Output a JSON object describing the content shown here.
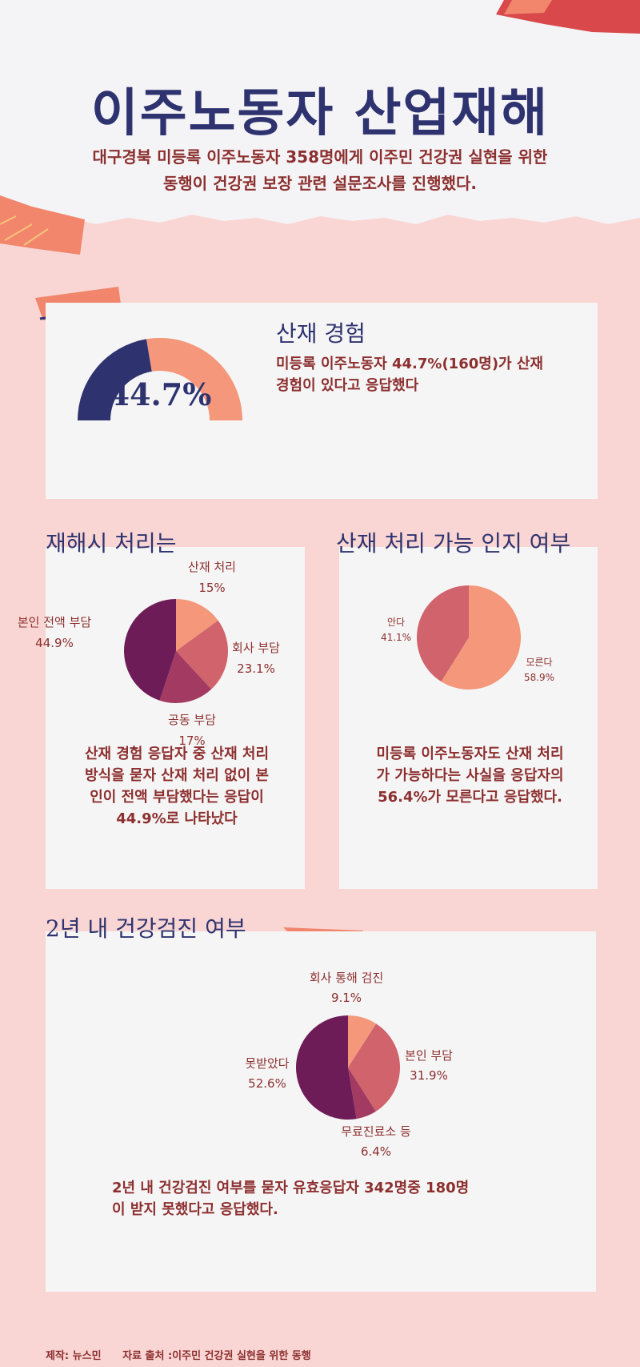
{
  "header": {
    "title": "이주노동자 산업재해",
    "subtitle_line1": "대구경북 미등록 이주노동자 358명에게 이주민 건강권 실현을 위한",
    "subtitle_line2": "동행이 건강권 보장 관련 설문조사를 진행했다."
  },
  "section1": {
    "title": "산재 경험",
    "text_line1": "미등록 이주노동자 44.7%(160명)가 산재",
    "text_line2": "경험이 있다고 응답했다",
    "gauge_label": "44.7%"
  },
  "section2": {
    "title": "재해시 처리는",
    "text_lines": [
      "산재 경험 응답자 중 산재 처리",
      "방식을 묻자 산재 처리 없이 본",
      "인이 전액 부담했다는 응답이",
      "44.9%로 나타났다"
    ]
  },
  "section3": {
    "title": "산재 처리 가능 인지 여부",
    "text_lines": [
      "미등록 이주노동자도 산재 처리",
      "가 가능하다는 사실을 응답자의",
      "56.4%가 모른다고 응답했다."
    ]
  },
  "section4": {
    "title": "2년 내 건강검진 여부",
    "text_line1": "2년 내 건강검진 여부를 묻자 유효응답자 342명중 180명",
    "text_line2": "이 받지 못했다고 응답했다."
  },
  "footer": {
    "credit": "제작: 뉴스민",
    "source": "자료 출처 :이주민 건강권 실현을 위한 동행"
  },
  "colors": {
    "navy": "#2e3370",
    "salmon": "#f4977a",
    "rose": "#d0636b",
    "berry": "#a23a62",
    "plum": "#6e1c57",
    "text_red": "#8c2f2f"
  },
  "chart_data": [
    {
      "type": "pie",
      "variant": "half-donut-gauge",
      "values": [
        44.7,
        55.3
      ],
      "value_label": "44.7%"
    },
    {
      "type": "pie",
      "slices": [
        {
          "label": "산재 처리",
          "value": 15,
          "value_label": "15%",
          "color": "#f4977a"
        },
        {
          "label": "회사 부담",
          "value": 23.1,
          "value_label": "23.1%",
          "color": "#d0636b"
        },
        {
          "label": "공동 부담",
          "value": 17,
          "value_label": "17%",
          "color": "#a23a62"
        },
        {
          "label": "본인 전액 부담",
          "value": 44.9,
          "value_label": "44.9%",
          "color": "#6e1c57"
        }
      ]
    },
    {
      "type": "pie",
      "slices": [
        {
          "label": "모른다",
          "value": 58.9,
          "value_label": "58.9%",
          "color": "#f4977a"
        },
        {
          "label": "안다",
          "value": 41.1,
          "value_label": "41.1%",
          "color": "#d0636b"
        }
      ]
    },
    {
      "type": "pie",
      "slices": [
        {
          "label": "회사 통해 검진",
          "value": 9.1,
          "value_label": "9.1%",
          "color": "#f4977a"
        },
        {
          "label": "본인 부담",
          "value": 31.9,
          "value_label": "31.9%",
          "color": "#d0636b"
        },
        {
          "label": "무료진료소 등",
          "value": 6.4,
          "value_label": "6.4%",
          "color": "#a23a62"
        },
        {
          "label": "못받았다",
          "value": 52.6,
          "value_label": "52.6%",
          "color": "#6e1c57"
        }
      ]
    }
  ]
}
